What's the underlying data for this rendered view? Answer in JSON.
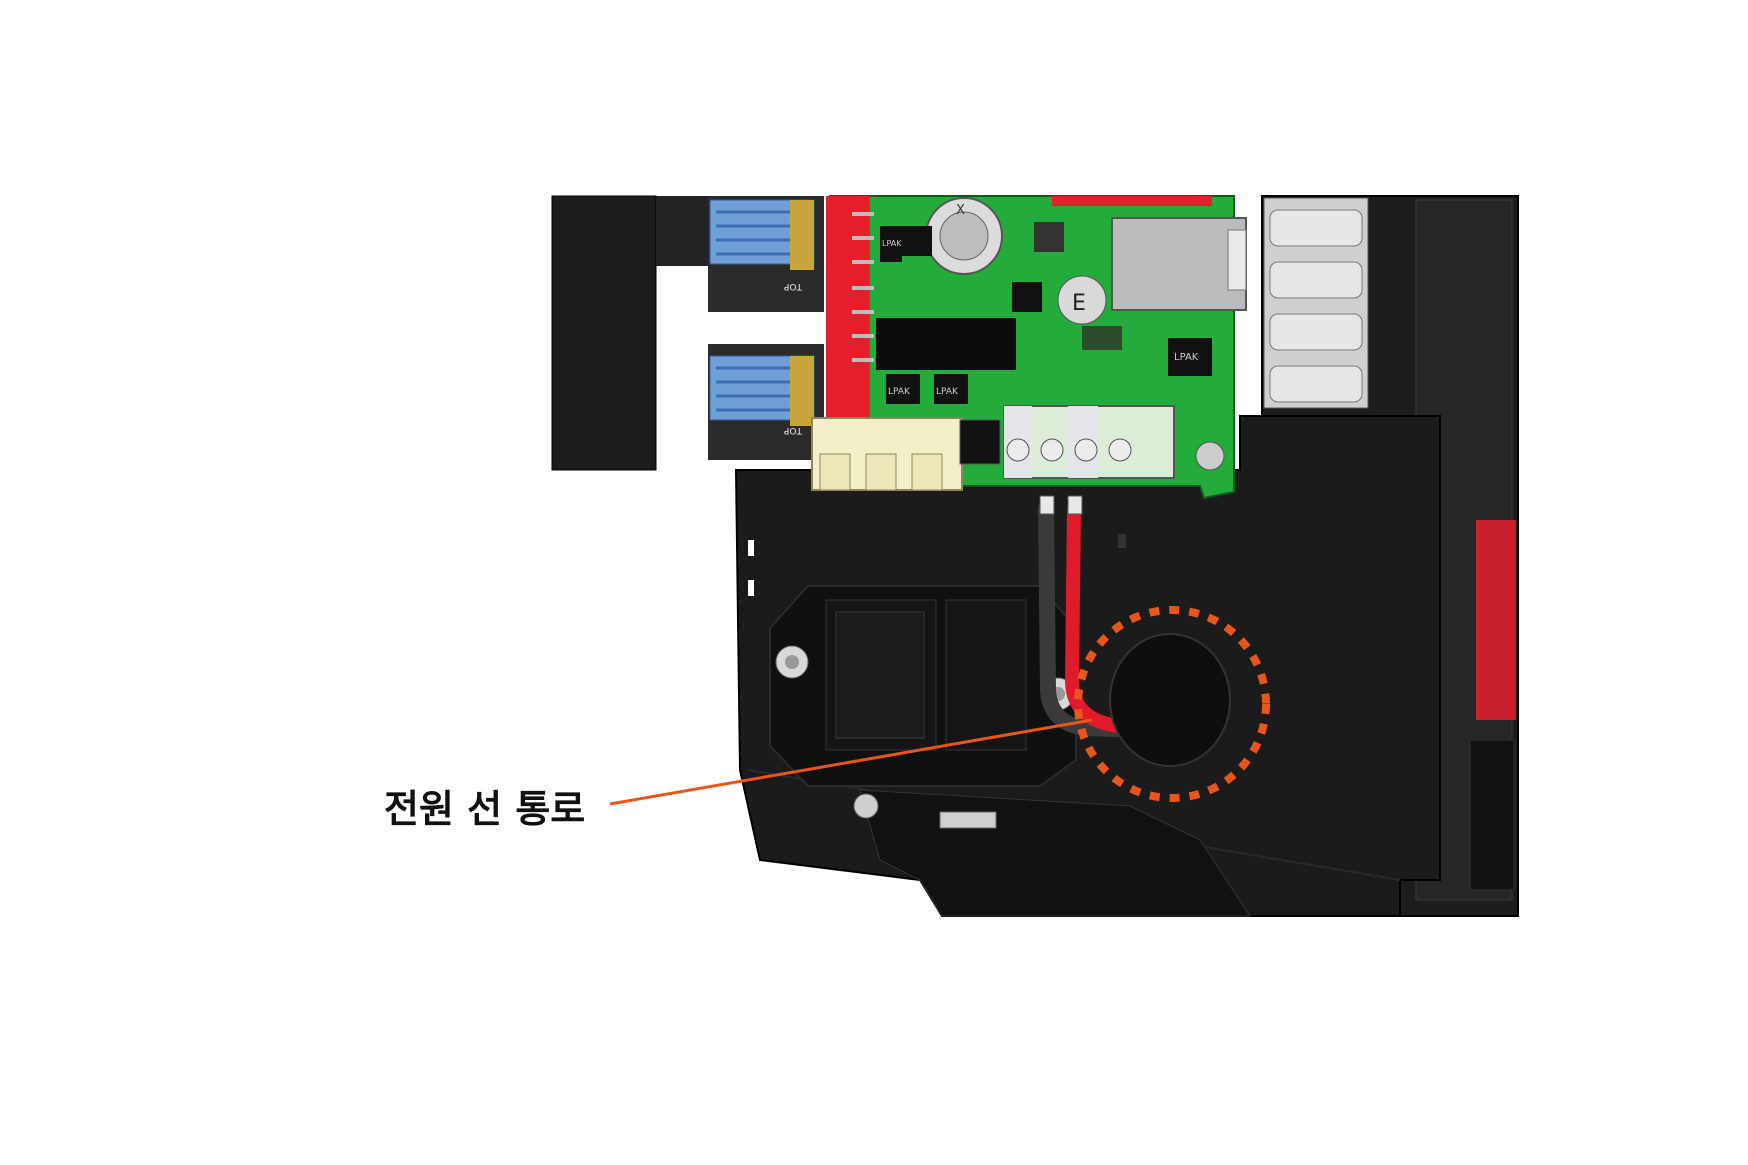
{
  "callout": {
    "label": "전원 선 통로",
    "color": "#e8561c"
  },
  "board_text": {
    "chip_left": "LPAK",
    "chip_right": "LPAK",
    "chip_bottom_1": "LPAK",
    "chip_bottom_2": "LPAK",
    "cap_mark": "E",
    "battery_mark": "X",
    "driver_top": "TOP",
    "driver_top_2": "TOP"
  },
  "colors": {
    "pcb": "#1fa83a",
    "housing": "#1a1a1a",
    "wire_red": "#e0192b",
    "wire_black": "#333333",
    "connector_cream": "#f3f0c8",
    "connector_green": "#dfeedd",
    "heatsink": "#d7d7d7",
    "driver_blue": "#6f9fd6",
    "led_red": "#d32028"
  }
}
